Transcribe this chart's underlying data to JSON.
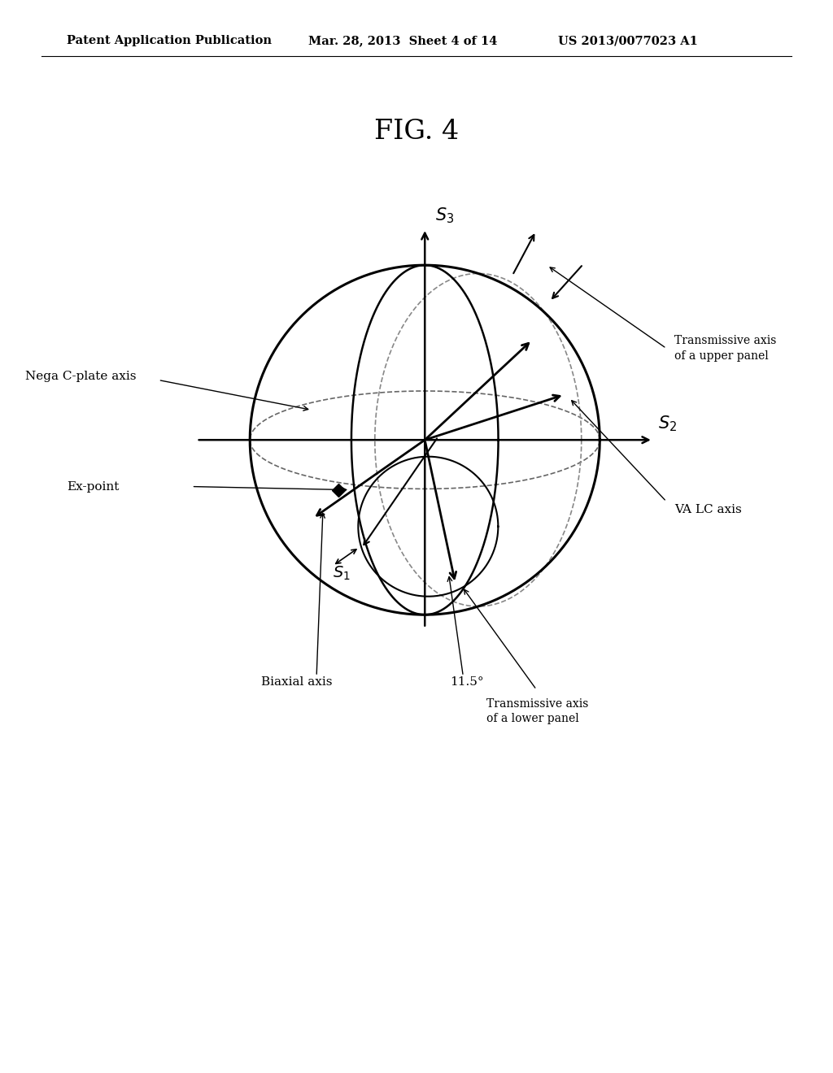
{
  "title": "FIG. 4",
  "header_left": "Patent Application Publication",
  "header_mid": "Mar. 28, 2013  Sheet 4 of 14",
  "header_right": "US 2013/0077023 A1",
  "bg_color": "#ffffff",
  "fg_color": "#000000",
  "annotations": {
    "nega_c_plate": "Nega C-plate axis",
    "transmissive_upper": "Transmissive axis\nof a upper panel",
    "transmissive_lower": "Transmissive axis\nof a lower panel",
    "va_lc": "VA LC axis",
    "ex_point": "Ex-point",
    "biaxial": "Biaxial axis",
    "angle_label": "11.5°"
  }
}
